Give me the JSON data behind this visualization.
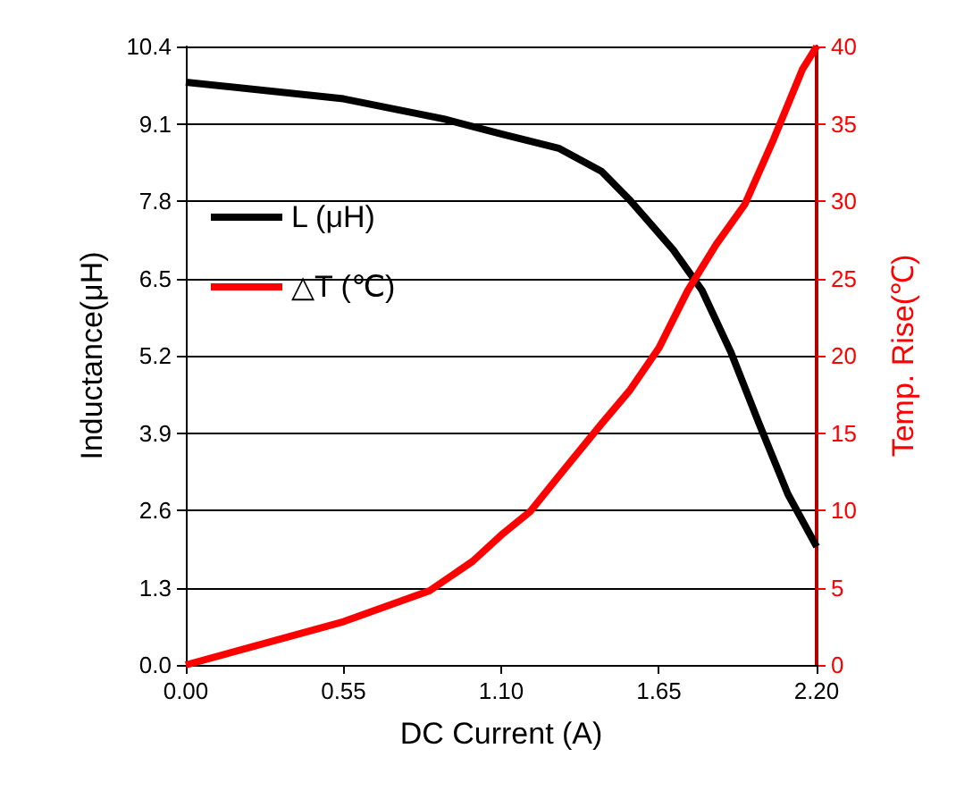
{
  "chart_data": {
    "type": "line",
    "xlabel": "DC Current (A)",
    "ylabel": "Inductance(μH)",
    "y2label": "Temp. Rise(℃)",
    "xlim": [
      0,
      2.2
    ],
    "xticks": [
      {
        "value": 0,
        "label": "0.00"
      },
      {
        "value": 0.55,
        "label": "0.55"
      },
      {
        "value": 1.1,
        "label": "1.10"
      },
      {
        "value": 1.65,
        "label": "1.65"
      },
      {
        "value": 2.2,
        "label": "2.20"
      }
    ],
    "ylim": [
      0,
      10.4
    ],
    "yticks": [
      {
        "value": 0,
        "label": "0.0"
      },
      1.3,
      2.6,
      3.9,
      5.2,
      6.5,
      7.8,
      9.1,
      10.4
    ],
    "y2lim": [
      0,
      40
    ],
    "y2ticks": [
      0,
      5,
      10,
      15,
      20,
      25,
      30,
      35,
      40
    ],
    "grid": "y",
    "legend": "top left",
    "marker": "none",
    "line_style": "solid",
    "series": [
      {
        "name": "L (μH)",
        "color": "#000000",
        "x": [
          0,
          0.55,
          0.9,
          1.1,
          1.3,
          1.45,
          1.55,
          1.7,
          1.8,
          1.9,
          2.0,
          2.1,
          2.2
        ],
        "values": [
          9.8,
          9.52,
          9.18,
          8.93,
          8.69,
          8.3,
          7.81,
          6.98,
          6.3,
          5.27,
          4.05,
          2.87,
          1.99
        ]
      },
      {
        "name": "△T (℃)",
        "color": "#ff0000",
        "axis": "y2",
        "x": [
          0,
          0.55,
          0.85,
          1.0,
          1.1,
          1.2,
          1.3,
          1.45,
          1.55,
          1.65,
          1.75,
          1.85,
          1.95,
          2.05,
          2.15,
          2.2
        ],
        "values": [
          0,
          2.8,
          4.8,
          6.7,
          8.4,
          9.9,
          12.2,
          15.6,
          17.8,
          20.5,
          24.2,
          27.2,
          29.8,
          34,
          38.5,
          40
        ]
      }
    ]
  }
}
